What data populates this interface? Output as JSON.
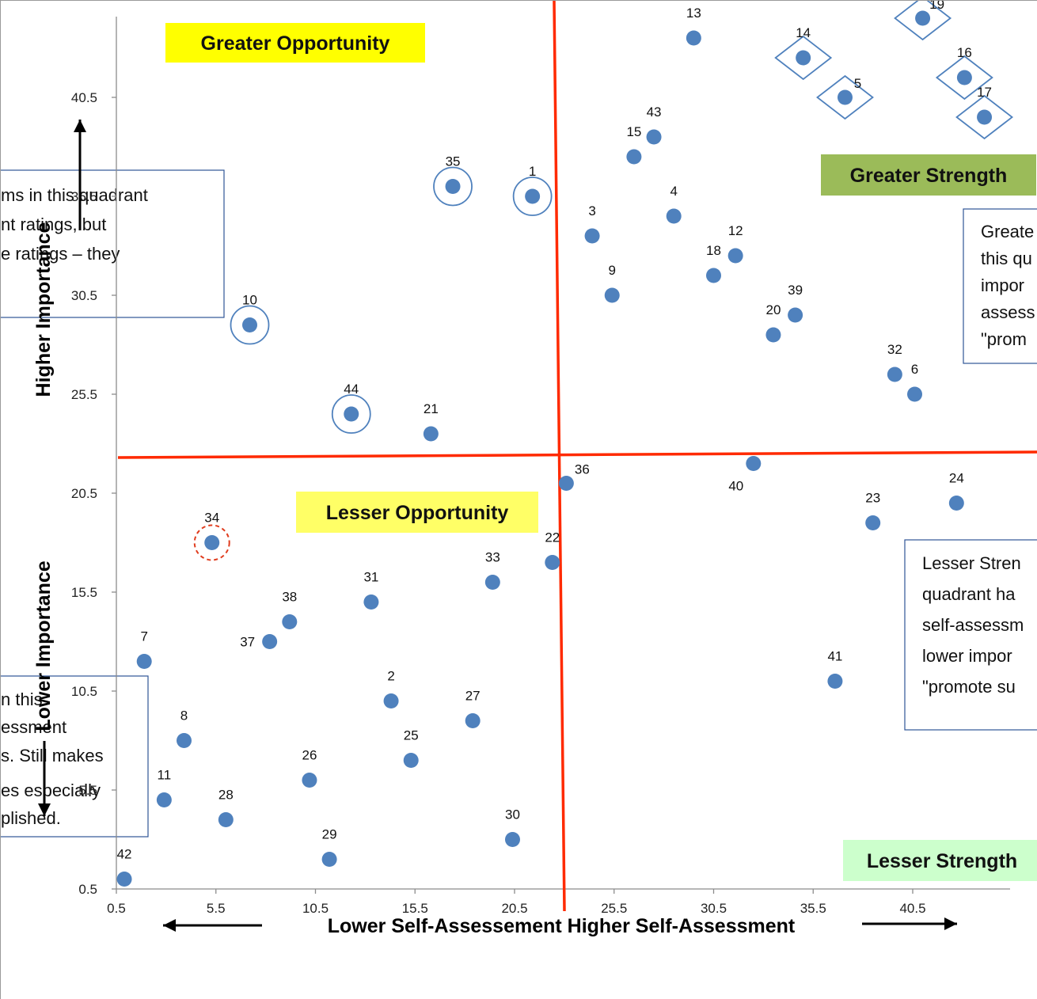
{
  "chart_data": {
    "type": "scatter",
    "xlabel": "Lower Self-Assessement   Higher Self-Assessment",
    "ylabel_upper": "Higher Importance",
    "ylabel_lower": "Lower Importance",
    "xlim": [
      0.5,
      45
    ],
    "ylim": [
      0.5,
      45
    ],
    "x_ticks": [
      "0.5",
      "5.5",
      "10.5",
      "15.5",
      "20.5",
      "25.5",
      "30.5",
      "35.5",
      "40.5"
    ],
    "y_ticks": [
      "0.5",
      "5.5",
      "10.5",
      "15.5",
      "20.5",
      "25.5",
      "30.5",
      "35.5",
      "40.5"
    ],
    "grid": false,
    "quadrant_divider": {
      "x": 22,
      "y": 22
    },
    "quadrant_labels": [
      {
        "text": "Greater Opportunity",
        "color": "#ffff00"
      },
      {
        "text": "Greater Strength",
        "color": "#9bbb59"
      },
      {
        "text": "Lesser Opportunity",
        "color": "#ffff66"
      },
      {
        "text": "Lesser Strength",
        "color": "#ccffcc"
      }
    ],
    "notes": [
      {
        "lines": [
          "ms in this quadrant",
          "nt ratings, but",
          "e ratings – they"
        ]
      },
      {
        "lines": [
          "Greate",
          "this qu",
          "impor",
          "assess",
          "\"prom"
        ]
      },
      {
        "lines": [
          "Lesser Stren",
          "quadrant ha",
          "self-assessm",
          "lower impor",
          "\"promote su"
        ]
      },
      {
        "lines": [
          "n this",
          "essment",
          "s.  Still makes",
          "es especially",
          "plished."
        ]
      }
    ],
    "point_color": "#4f81bd",
    "points": [
      {
        "label": "13",
        "x": 29.5,
        "y": 43.5
      },
      {
        "label": "14",
        "x": 35.0,
        "y": 42.5,
        "marker": "diamond"
      },
      {
        "label": "19",
        "x": 41.0,
        "y": 44.5,
        "marker": "diamond"
      },
      {
        "label": "16",
        "x": 43.1,
        "y": 41.5,
        "marker": "diamond"
      },
      {
        "label": "5",
        "x": 37.1,
        "y": 40.5,
        "marker": "diamond"
      },
      {
        "label": "17",
        "x": 44.1,
        "y": 39.5,
        "marker": "diamond"
      },
      {
        "label": "43",
        "x": 27.5,
        "y": 38.5
      },
      {
        "label": "15",
        "x": 26.5,
        "y": 37.5
      },
      {
        "label": "35",
        "x": 17.4,
        "y": 36.0,
        "marker": "circle"
      },
      {
        "label": "1",
        "x": 21.4,
        "y": 35.5,
        "marker": "circle"
      },
      {
        "label": "4",
        "x": 28.5,
        "y": 34.5
      },
      {
        "label": "3",
        "x": 24.4,
        "y": 33.5
      },
      {
        "label": "12",
        "x": 31.6,
        "y": 32.5
      },
      {
        "label": "18",
        "x": 30.5,
        "y": 31.5
      },
      {
        "label": "9",
        "x": 25.4,
        "y": 30.5
      },
      {
        "label": "39",
        "x": 34.6,
        "y": 29.5
      },
      {
        "label": "10",
        "x": 7.2,
        "y": 29.0,
        "marker": "circle"
      },
      {
        "label": "20",
        "x": 33.5,
        "y": 28.5
      },
      {
        "label": "32",
        "x": 39.6,
        "y": 26.5
      },
      {
        "label": "6",
        "x": 40.6,
        "y": 25.5
      },
      {
        "label": "44",
        "x": 12.3,
        "y": 24.5,
        "marker": "circle"
      },
      {
        "label": "21",
        "x": 16.3,
        "y": 23.5
      },
      {
        "label": "40",
        "x": 32.5,
        "y": 22.0
      },
      {
        "label": "36",
        "x": 23.1,
        "y": 21.0
      },
      {
        "label": "24",
        "x": 42.7,
        "y": 20.0
      },
      {
        "label": "23",
        "x": 38.5,
        "y": 19.0
      },
      {
        "label": "34",
        "x": 5.3,
        "y": 18.0,
        "marker": "dashed-circle"
      },
      {
        "label": "22",
        "x": 22.4,
        "y": 17.0
      },
      {
        "label": "33",
        "x": 19.4,
        "y": 16.0
      },
      {
        "label": "31",
        "x": 13.3,
        "y": 15.0
      },
      {
        "label": "38",
        "x": 9.2,
        "y": 14.0
      },
      {
        "label": "37",
        "x": 8.2,
        "y": 13.0
      },
      {
        "label": "7",
        "x": 1.9,
        "y": 12.0
      },
      {
        "label": "41",
        "x": 36.6,
        "y": 11.0
      },
      {
        "label": "2",
        "x": 14.3,
        "y": 10.0
      },
      {
        "label": "27",
        "x": 18.4,
        "y": 9.0
      },
      {
        "label": "8",
        "x": 3.9,
        "y": 8.0
      },
      {
        "label": "25",
        "x": 15.3,
        "y": 7.0
      },
      {
        "label": "26",
        "x": 10.2,
        "y": 6.0
      },
      {
        "label": "11",
        "x": 2.9,
        "y": 5.0
      },
      {
        "label": "28",
        "x": 6.0,
        "y": 4.0
      },
      {
        "label": "30",
        "x": 20.4,
        "y": 3.0
      },
      {
        "label": "29",
        "x": 11.2,
        "y": 2.0
      },
      {
        "label": "42",
        "x": 0.9,
        "y": 1.0
      }
    ]
  }
}
